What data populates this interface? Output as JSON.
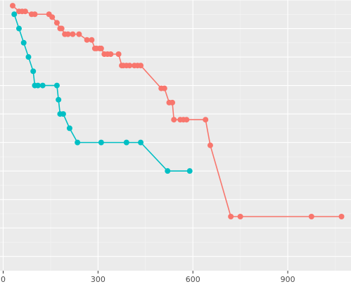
{
  "chart_data": {
    "type": "line",
    "title": "",
    "xlabel": "",
    "ylabel": "",
    "xlim": [
      -10,
      1100
    ],
    "ylim": [
      0.05,
      1.0
    ],
    "x_ticks": [
      0,
      300,
      600,
      900
    ],
    "x_tick_labels": [
      "0",
      "300",
      "600",
      "900"
    ],
    "x_minor_ticks": [
      150,
      450,
      750,
      1050
    ],
    "y_major_gridlines": [
      0.1,
      0.2,
      0.3,
      0.4,
      0.5,
      0.6,
      0.7,
      0.8,
      0.9,
      1.0
    ],
    "y_minor_gridlines": [
      0.15,
      0.25,
      0.35,
      0.45,
      0.55,
      0.65,
      0.75,
      0.85,
      0.95
    ],
    "y_tick_labels_visible": false,
    "grid": true,
    "panel_background": "#ebebeb",
    "series": [
      {
        "color": "#f8766d",
        "x": [
          30,
          50,
          60,
          70,
          90,
          100,
          145,
          155,
          170,
          180,
          185,
          195,
          205,
          220,
          240,
          265,
          280,
          290,
          295,
          305,
          310,
          320,
          330,
          340,
          365,
          375,
          380,
          390,
          400,
          415,
          425,
          435,
          500,
          510,
          525,
          535,
          540,
          560,
          570,
          580,
          640,
          655,
          720,
          750,
          975,
          1070
        ],
        "y": [
          0.98,
          0.96,
          0.96,
          0.96,
          0.95,
          0.95,
          0.95,
          0.94,
          0.92,
          0.9,
          0.9,
          0.88,
          0.88,
          0.88,
          0.88,
          0.86,
          0.86,
          0.83,
          0.83,
          0.83,
          0.83,
          0.81,
          0.81,
          0.81,
          0.81,
          0.77,
          0.77,
          0.77,
          0.77,
          0.77,
          0.77,
          0.77,
          0.69,
          0.69,
          0.64,
          0.64,
          0.58,
          0.58,
          0.58,
          0.58,
          0.58,
          0.49,
          0.24,
          0.24,
          0.24,
          0.24
        ]
      },
      {
        "color": "#00bfc4",
        "x": [
          35,
          50,
          65,
          80,
          95,
          100,
          110,
          125,
          170,
          175,
          180,
          190,
          210,
          235,
          310,
          390,
          435,
          520,
          590
        ],
        "y": [
          0.95,
          0.9,
          0.85,
          0.8,
          0.75,
          0.7,
          0.7,
          0.7,
          0.7,
          0.65,
          0.6,
          0.6,
          0.55,
          0.5,
          0.5,
          0.5,
          0.5,
          0.4,
          0.4
        ]
      }
    ]
  }
}
